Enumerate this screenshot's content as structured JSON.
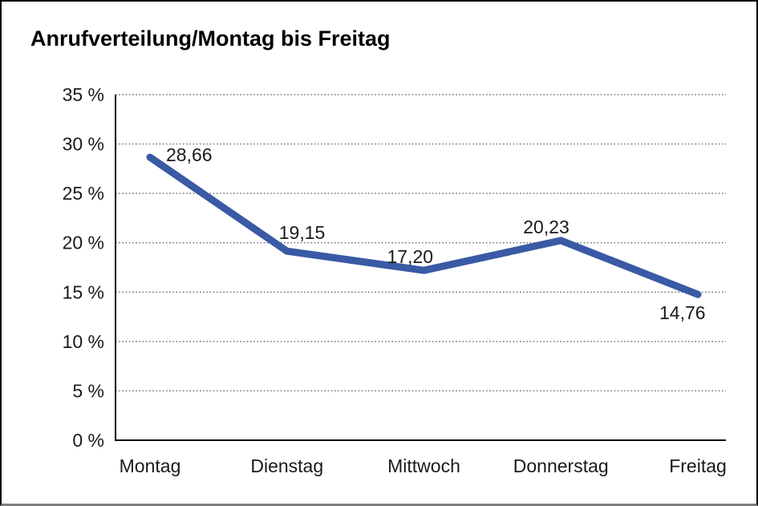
{
  "title": "Anrufverteilung/Montag bis Freitag",
  "colors": {
    "series_line": "#3a5aa5",
    "axis": "#000000",
    "gridline": "#5a5a5a",
    "text": "#1a1a1a",
    "frame_border": "#000000",
    "frame_bottom": "#7f7f7f",
    "background": "#ffffff"
  },
  "chart_data": {
    "type": "line",
    "title": "Anrufverteilung/Montag bis Freitag",
    "categories": [
      "Montag",
      "Dienstag",
      "Mittwoch",
      "Donnerstag",
      "Freitag"
    ],
    "series": [
      {
        "name": "Anrufverteilung",
        "values": [
          28.66,
          19.15,
          17.2,
          20.23,
          14.76
        ],
        "value_labels": [
          "28,66",
          "19,15",
          "17,20",
          "20,23",
          "14,76"
        ]
      }
    ],
    "xlabel": "",
    "ylabel": "",
    "ylim": [
      0,
      35
    ],
    "ytick_step": 5,
    "ytick_labels": [
      "0 %",
      "5 %",
      "10 %",
      "15 %",
      "20 %",
      "25 %",
      "30 %",
      "35 %"
    ],
    "grid": "horizontal-dotted",
    "legend": "none",
    "markers": "none",
    "unit": "%"
  }
}
